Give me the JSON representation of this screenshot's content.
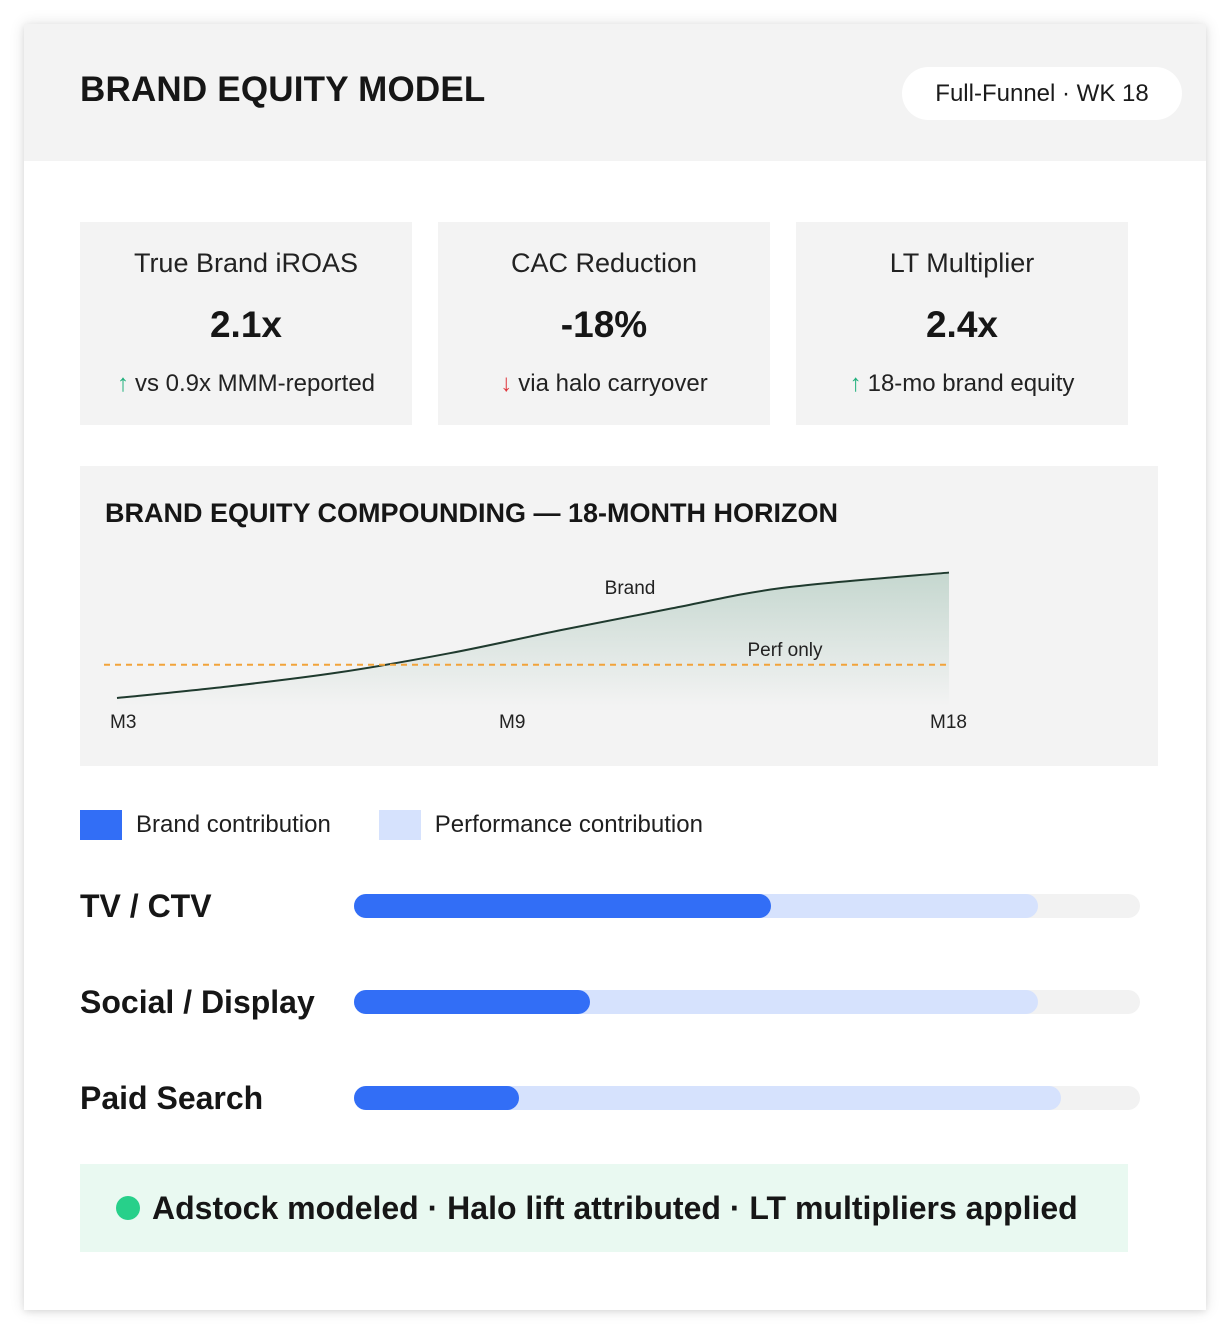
{
  "header": {
    "title": "BRAND EQUITY MODEL",
    "badge": "Full-Funnel · WK 18"
  },
  "kpis": [
    {
      "label": "True Brand iROAS",
      "value": "2.1x",
      "direction": "up",
      "note": "vs 0.9x MMM-reported"
    },
    {
      "label": "CAC Reduction",
      "value": "-18%",
      "direction": "down",
      "note": "via halo carryover"
    },
    {
      "label": "LT Multiplier",
      "value": "2.4x",
      "direction": "up",
      "note": "18-mo brand equity"
    }
  ],
  "chart_data": {
    "type": "area",
    "title": "BRAND EQUITY COMPOUNDING — 18-MONTH HORIZON",
    "x_tick_labels": [
      "M3",
      "M9",
      "M18"
    ],
    "xlim": [
      3,
      18
    ],
    "ylim": [
      0,
      1
    ],
    "series": [
      {
        "name": "Brand",
        "x": [
          3,
          5,
          7,
          9,
          11,
          13,
          15,
          18
        ],
        "values": [
          0.0,
          0.09,
          0.2,
          0.35,
          0.53,
          0.7,
          0.86,
          0.98
        ]
      },
      {
        "name": "Perf only",
        "style": "dashed",
        "x": [
          3,
          18
        ],
        "values": [
          0.26,
          0.26
        ]
      }
    ],
    "colors": {
      "brand_line": "#1f3a2e",
      "brand_fill": "#c5d7cf",
      "perf_line": "#f2a33a"
    },
    "grid": false
  },
  "legend": {
    "brand_label": "Brand contribution",
    "performance_label": "Performance contribution",
    "brand_color": "#326ef6",
    "performance_color": "#d6e2fd"
  },
  "channels": [
    {
      "name": "TV / CTV",
      "brand_share": 0.53,
      "total_share": 0.87
    },
    {
      "name": "Social / Display",
      "brand_share": 0.3,
      "total_share": 0.87
    },
    {
      "name": "Paid Search",
      "brand_share": 0.21,
      "total_share": 0.9
    }
  ],
  "status": {
    "text": "Adstock modeled · Halo lift attributed · LT multipliers applied",
    "dot_color": "#27d08a"
  }
}
